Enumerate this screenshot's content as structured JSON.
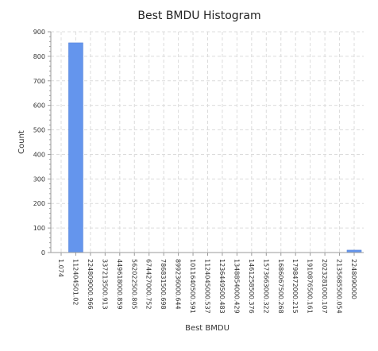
{
  "chart_data": {
    "type": "bar",
    "title": "Best BMDU Histogram",
    "xlabel": "Best BMDU",
    "ylabel": "Count",
    "ylim": [
      0,
      900
    ],
    "yticks": [
      0,
      100,
      200,
      300,
      400,
      500,
      600,
      700,
      800,
      900
    ],
    "categories": [
      "1.074",
      "112404501.02",
      "224809000.966",
      "337213500.913",
      "449618000.859",
      "562022500.805",
      "674427000.752",
      "786831500.698",
      "899236000.644",
      "1011640500.591",
      "1124045000.537",
      "1236449500.483",
      "1348854000.429",
      "1461258500.376",
      "1573663000.322",
      "1686067500.268",
      "1798472000.215",
      "1910876500.161",
      "2023281000.107",
      "2135685500.054",
      "2248090000"
    ],
    "values": [
      0,
      855,
      0,
      0,
      0,
      0,
      0,
      0,
      0,
      0,
      0,
      0,
      0,
      0,
      0,
      0,
      0,
      0,
      0,
      0,
      10
    ],
    "grid": true,
    "bar_color": "#6495ed"
  }
}
